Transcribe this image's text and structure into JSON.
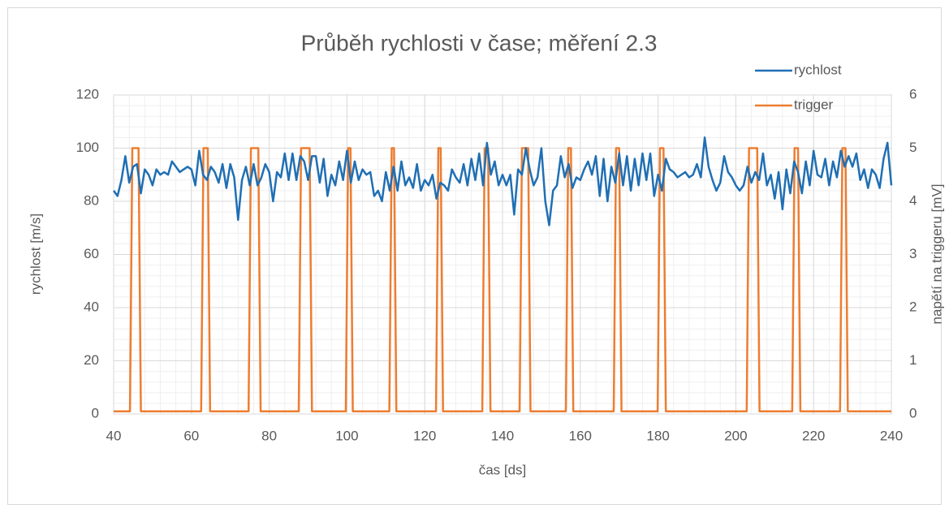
{
  "chart_data": {
    "type": "line",
    "title": "Průběh rychlosti v čase; měření 2.3",
    "x_label": "čas [ds]",
    "y_label": "rychlost [m/s]",
    "y2_label": "napětí na triggeru [mV]",
    "xlim": [
      40,
      240
    ],
    "xticks": [
      40,
      60,
      80,
      100,
      120,
      140,
      160,
      180,
      200,
      220,
      240
    ],
    "ylim": [
      0,
      120
    ],
    "yticks": [
      0,
      20,
      40,
      60,
      80,
      100,
      120
    ],
    "y2lim": [
      0,
      6
    ],
    "y2ticks": [
      0,
      1,
      2,
      3,
      4,
      5,
      6
    ],
    "grid": true,
    "x_minor_step": 4,
    "y_minor_step": 4,
    "legend": "top-right",
    "series": [
      {
        "name": "rychlost",
        "color": "#1f6fb4",
        "axis": "y",
        "x": [
          40,
          41,
          42,
          43,
          44,
          45,
          46,
          47,
          48,
          49,
          50,
          51,
          52,
          53,
          54,
          55,
          56,
          57,
          58,
          59,
          60,
          61,
          62,
          63,
          64,
          65,
          66,
          67,
          68,
          69,
          70,
          71,
          72,
          73,
          74,
          75,
          76,
          77,
          78,
          79,
          80,
          81,
          82,
          83,
          84,
          85,
          86,
          87,
          88,
          89,
          90,
          91,
          92,
          93,
          94,
          95,
          96,
          97,
          98,
          99,
          100,
          101,
          102,
          103,
          104,
          105,
          106,
          107,
          108,
          109,
          110,
          111,
          112,
          113,
          114,
          115,
          116,
          117,
          118,
          119,
          120,
          121,
          122,
          123,
          124,
          125,
          126,
          127,
          128,
          129,
          130,
          131,
          132,
          133,
          134,
          135,
          136,
          137,
          138,
          139,
          140,
          141,
          142,
          143,
          144,
          145,
          146,
          147,
          148,
          149,
          150,
          151,
          152,
          153,
          154,
          155,
          156,
          157,
          158,
          159,
          160,
          161,
          162,
          163,
          164,
          165,
          166,
          167,
          168,
          169,
          170,
          171,
          172,
          173,
          174,
          175,
          176,
          177,
          178,
          179,
          180,
          181,
          182,
          183,
          184,
          185,
          186,
          187,
          188,
          189,
          190,
          191,
          192,
          193,
          194,
          195,
          196,
          197,
          198,
          199,
          200,
          201,
          202,
          203,
          204,
          205,
          206,
          207,
          208,
          209,
          210,
          211,
          212,
          213,
          214,
          215,
          216,
          217,
          218,
          219,
          220,
          221,
          222,
          223,
          224,
          225,
          226,
          227,
          228,
          229,
          230,
          231,
          232,
          233,
          234,
          235,
          236,
          237,
          238,
          239,
          240
        ],
        "values": [
          84,
          82,
          88,
          97,
          87,
          93,
          94,
          83,
          92,
          90,
          86,
          92,
          90,
          91,
          90,
          95,
          93,
          91,
          92,
          93,
          92,
          86,
          99,
          90,
          88,
          93,
          91,
          87,
          94,
          85,
          94,
          89,
          73,
          88,
          93,
          86,
          94,
          86,
          89,
          94,
          91,
          80,
          91,
          89,
          98,
          88,
          98,
          88,
          97,
          95,
          88,
          97,
          97,
          87,
          96,
          82,
          90,
          86,
          95,
          88,
          99,
          87,
          95,
          88,
          92,
          90,
          91,
          82,
          84,
          80,
          91,
          84,
          93,
          84,
          95,
          86,
          89,
          85,
          94,
          84,
          88,
          86,
          90,
          81,
          87,
          86,
          84,
          92,
          89,
          87,
          94,
          86,
          96,
          88,
          98,
          86,
          102,
          90,
          95,
          86,
          90,
          86,
          90,
          75,
          92,
          90,
          100,
          92,
          86,
          89,
          100,
          80,
          71,
          84,
          86,
          97,
          89,
          94,
          85,
          89,
          88,
          92,
          95,
          90,
          97,
          82,
          96,
          80,
          93,
          87,
          98,
          86,
          97,
          84,
          96,
          86,
          98,
          88,
          98,
          82,
          90,
          84,
          96,
          92,
          91,
          89,
          90,
          91,
          89,
          90,
          94,
          89,
          104,
          93,
          88,
          84,
          87,
          97,
          91,
          89,
          86,
          84,
          86,
          93,
          87,
          91,
          88,
          98,
          86,
          90,
          81,
          91,
          77,
          92,
          83,
          95,
          91,
          83,
          95,
          86,
          99,
          90,
          89,
          96,
          86,
          95,
          89,
          99,
          93,
          97,
          93,
          98,
          88,
          92,
          85,
          92,
          90,
          85,
          96,
          102,
          86
        ]
      },
      {
        "name": "trigger",
        "color": "#ed7d31",
        "axis": "y2",
        "x": [
          40,
          44.2,
          44.8,
          46.4,
          47.0,
          62.5,
          63.1,
          64.2,
          64.8,
          74.7,
          75.3,
          77.2,
          77.8,
          87.6,
          88.2,
          90.4,
          91.0,
          99.7,
          100.3,
          100.9,
          101.5,
          110.9,
          111.5,
          112.1,
          112.7,
          122.9,
          123.5,
          124.1,
          124.7,
          134.8,
          135.4,
          136.3,
          136.9,
          144.4,
          145.0,
          146.6,
          147.2,
          156.3,
          156.9,
          157.6,
          158.2,
          168.6,
          169.2,
          170.0,
          170.6,
          179.9,
          180.5,
          181.4,
          182.0,
          202.8,
          203.4,
          205.5,
          206.1,
          214.5,
          215.1,
          216.0,
          216.6,
          226.8,
          227.4,
          228.2,
          228.8,
          240
        ],
        "values": [
          0.05,
          0.05,
          5,
          5,
          0.05,
          0.05,
          5,
          5,
          0.05,
          0.05,
          5,
          5,
          0.05,
          0.05,
          5,
          5,
          0.05,
          0.05,
          5,
          5,
          0.05,
          0.05,
          5,
          5,
          0.05,
          0.05,
          5,
          5,
          0.05,
          0.05,
          5,
          5,
          0.05,
          0.05,
          5,
          5,
          0.05,
          0.05,
          5,
          5,
          0.05,
          0.05,
          5,
          5,
          0.05,
          0.05,
          5,
          5,
          0.05,
          0.05,
          5,
          5,
          0.05,
          0.05,
          5,
          5,
          0.05,
          0.05,
          5,
          5,
          0.05,
          0.05
        ]
      }
    ]
  }
}
